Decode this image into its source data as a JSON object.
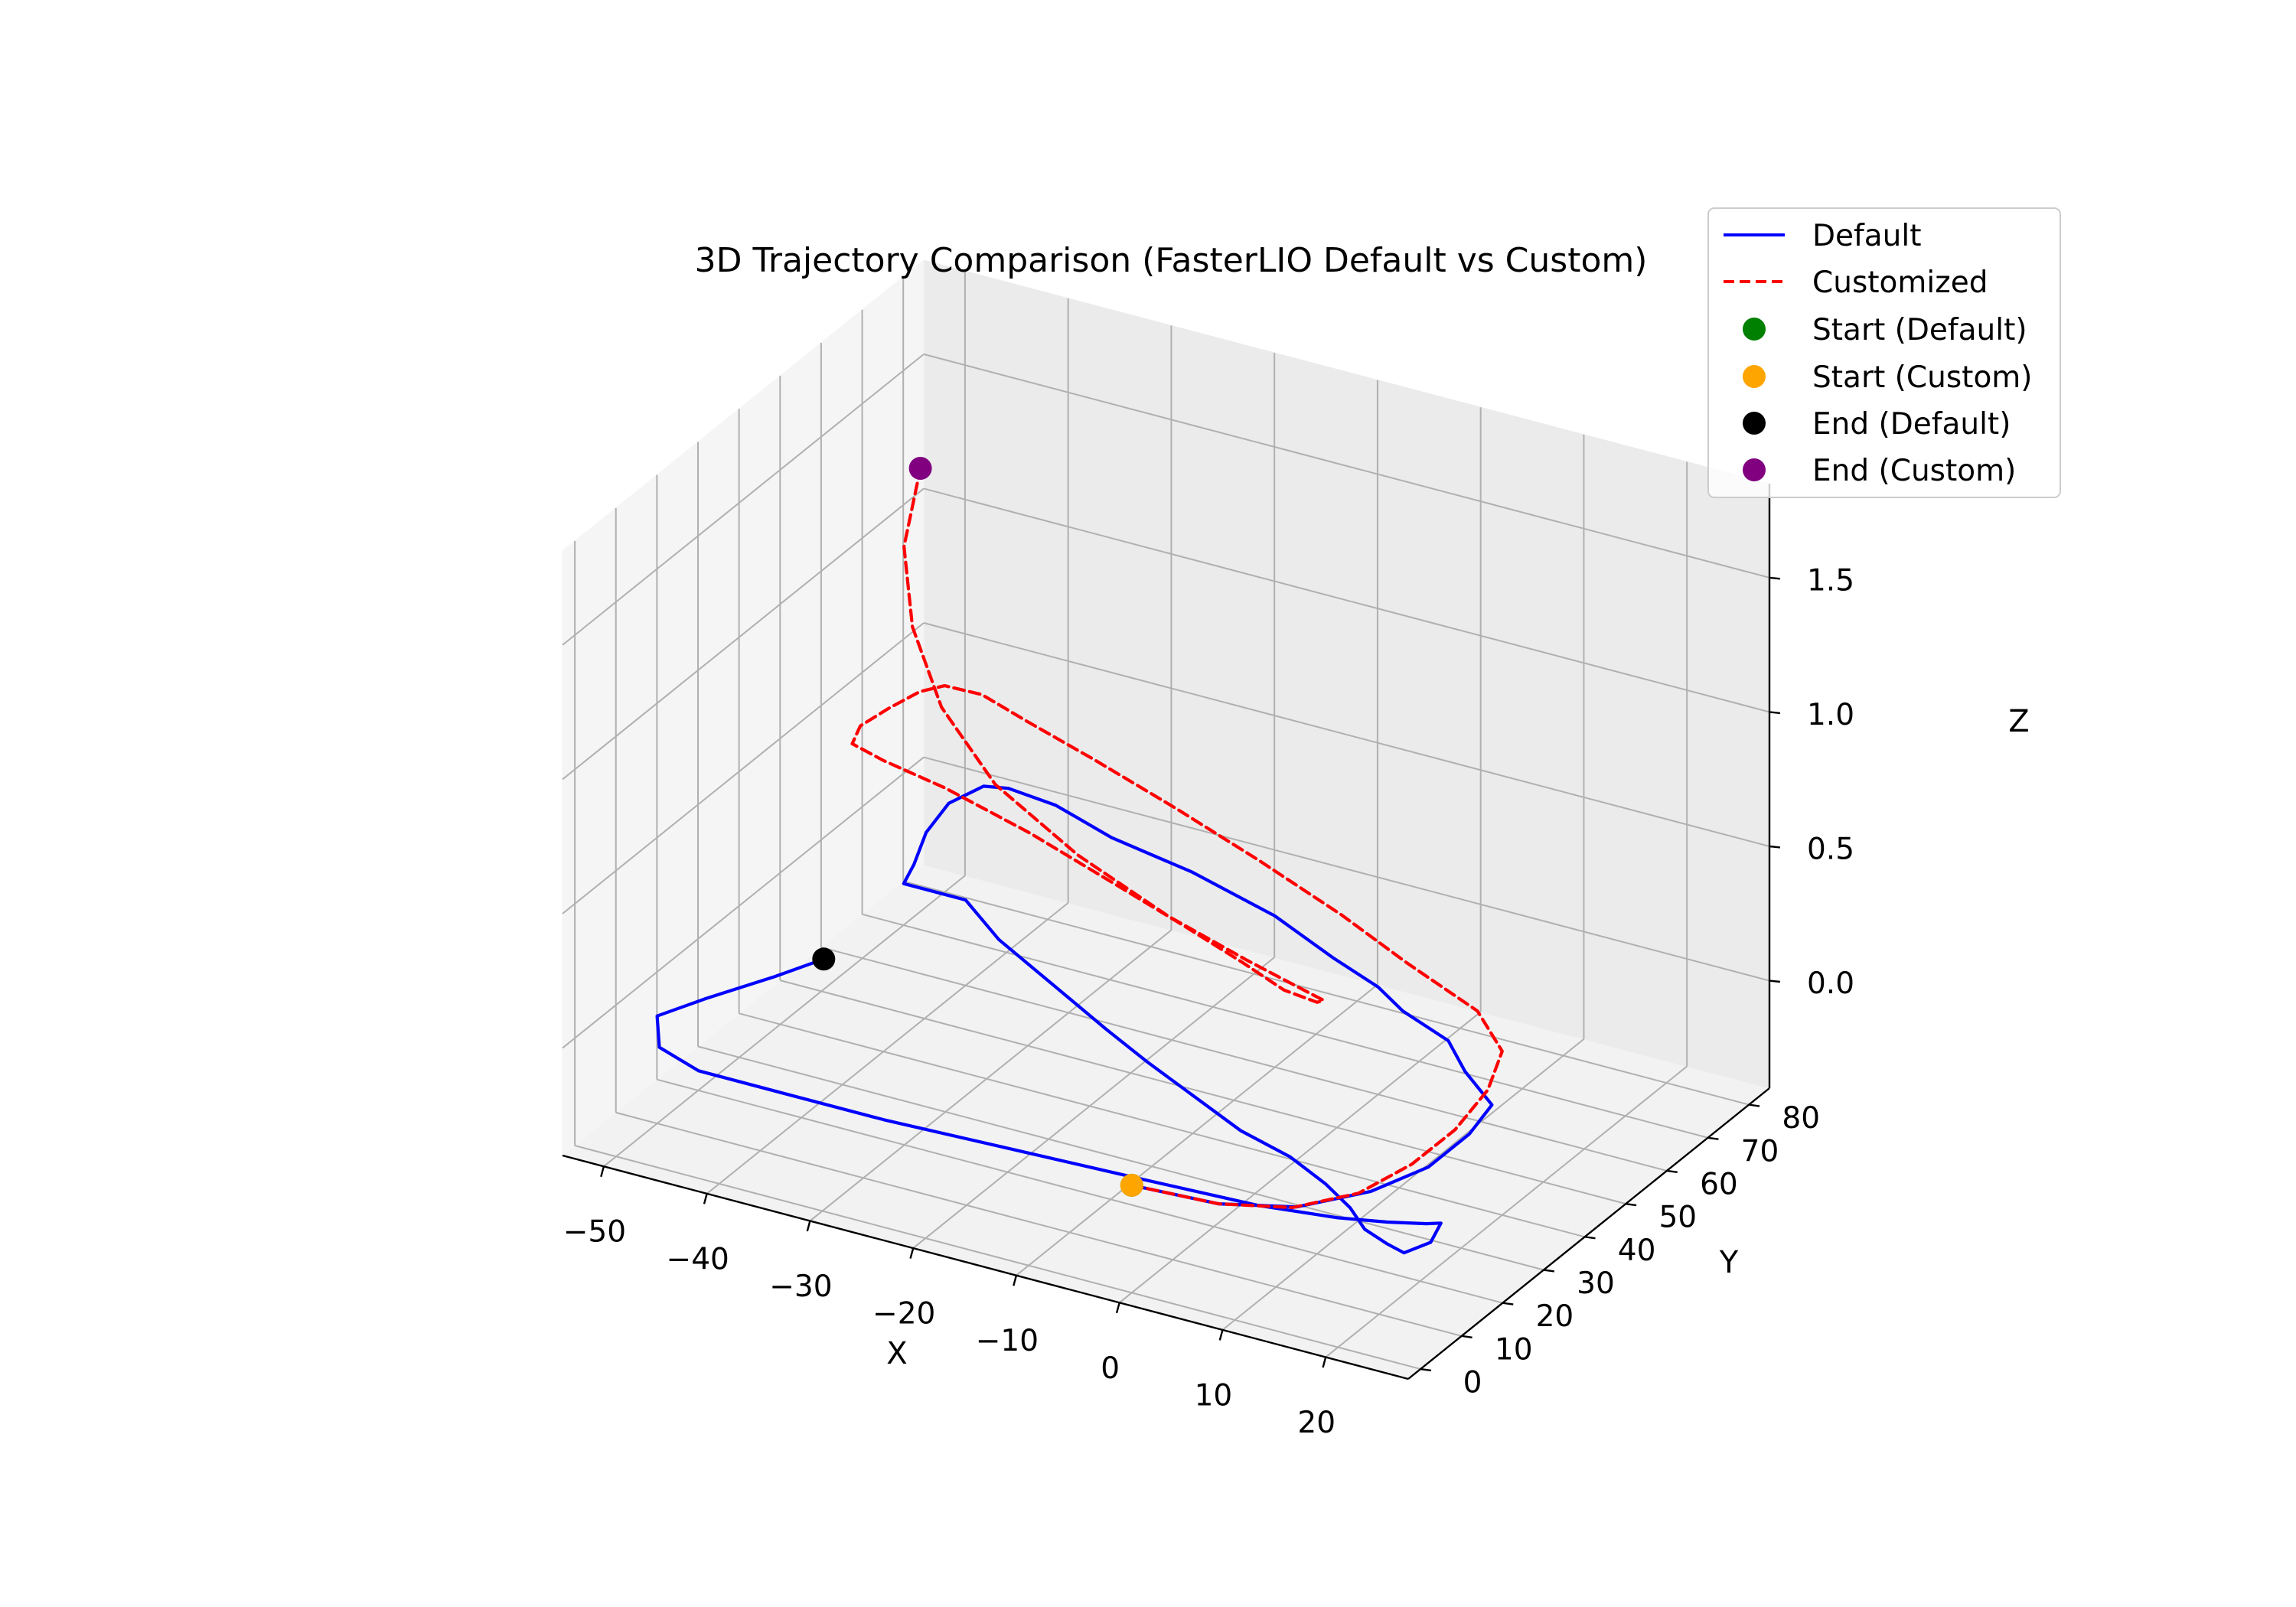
{
  "chart_data": {
    "type": "line",
    "projection": "3d",
    "title": "3D Trajectory Comparison (FasterLIO Default vs Custom)",
    "xlabel": "X",
    "ylabel": "Y",
    "zlabel": "Z",
    "xlim": [
      -54,
      28
    ],
    "ylim": [
      -3,
      85
    ],
    "zlim": [
      -0.4,
      1.85
    ],
    "xticks": [
      -50,
      -40,
      -30,
      -20,
      -10,
      0,
      10,
      20
    ],
    "yticks": [
      0,
      10,
      20,
      30,
      40,
      50,
      60,
      70,
      80
    ],
    "zticks": [
      0.0,
      0.5,
      1.0,
      1.5
    ],
    "xtick_labels": [
      "−50",
      "−40",
      "−30",
      "−20",
      "−10",
      "0",
      "10",
      "20"
    ],
    "ytick_labels": [
      "0",
      "10",
      "20",
      "30",
      "40",
      "50",
      "60",
      "70",
      "80"
    ],
    "ztick_labels": [
      "0.0",
      "0.5",
      "1.0",
      "1.5"
    ],
    "grid": true,
    "legend_position": "top-right",
    "legend": [
      "Default",
      "Customized",
      "Start (Default)",
      "Start (Custom)",
      "End (Default)",
      "End (Custom)"
    ],
    "series": [
      {
        "name": "Default",
        "color": "#0000ff",
        "style": "solid",
        "x": [
          0,
          8,
          14,
          18,
          20,
          20,
          19,
          14,
          10,
          4,
          0,
          -6,
          -14,
          -24,
          -33,
          -40,
          -45,
          -47,
          -48,
          -47,
          -45,
          -44,
          -38,
          -38,
          -32,
          -24,
          -16,
          -10,
          3,
          9,
          14,
          18,
          21,
          24,
          26,
          27,
          26,
          25,
          22,
          18,
          11,
          0,
          -12,
          -24,
          -35,
          -42,
          -47,
          -50,
          -48,
          -45,
          -43
        ],
        "y": [
          0,
          1,
          5,
          13,
          22,
          32,
          40,
          46,
          52,
          56,
          60,
          64,
          70,
          75,
          78,
          82,
          83,
          82,
          76,
          68,
          60,
          55,
          55,
          55,
          48,
          41,
          34,
          29,
          19,
          16,
          12,
          8,
          4,
          2,
          1,
          5,
          10,
          9,
          7,
          5,
          3,
          2,
          1,
          0,
          0,
          0,
          3,
          10,
          17,
          26,
          33
        ],
        "z": [
          0,
          0,
          0,
          0,
          0,
          0,
          0,
          0,
          0,
          0,
          0,
          0,
          0,
          0,
          0,
          0,
          0,
          0,
          0,
          0,
          0,
          0,
          0,
          0,
          0,
          0,
          0,
          0,
          0,
          0,
          0,
          0,
          0,
          0,
          0,
          0,
          0,
          0,
          0,
          0,
          0,
          0,
          0,
          0,
          0,
          0,
          0,
          0,
          0,
          0,
          0
        ]
      },
      {
        "name": "Customized",
        "color": "#ff0000",
        "style": "dashed",
        "x": [
          0,
          8,
          14,
          18,
          20,
          21,
          21,
          20,
          16,
          8,
          0,
          -10,
          -20,
          -30,
          -38,
          -44,
          -48,
          -50,
          -51,
          -51,
          -49,
          -44,
          -36,
          -25,
          -14,
          -4,
          4,
          10,
          14,
          15,
          13,
          8,
          0,
          -10,
          -20,
          -28,
          -34,
          -38,
          -40
        ],
        "y": [
          0,
          1,
          4,
          10,
          18,
          26,
          34,
          40,
          44,
          47,
          51,
          56,
          61,
          66,
          70,
          74,
          75,
          74,
          69,
          62,
          55,
          50,
          45,
          38,
          30,
          23,
          17,
          12,
          10,
          9,
          8,
          8,
          9,
          12,
          17,
          24,
          32,
          40,
          49
        ],
        "z": [
          0,
          0,
          0.01,
          0.03,
          0.06,
          0.1,
          0.15,
          0.21,
          0.27,
          0.33,
          0.38,
          0.42,
          0.45,
          0.47,
          0.48,
          0.47,
          0.45,
          0.42,
          0.41,
          0.43,
          0.47,
          0.52,
          0.56,
          0.59,
          0.62,
          0.64,
          0.66,
          0.68,
          0.7,
          0.73,
          0.77,
          0.82,
          0.89,
          0.98,
          1.08,
          1.2,
          1.34,
          1.5,
          1.66
        ]
      }
    ],
    "markers": [
      {
        "name": "Start (Default)",
        "color": "#008000",
        "x": 0,
        "y": 0,
        "z": 0
      },
      {
        "name": "Start (Custom)",
        "color": "#ffa500",
        "x": 0,
        "y": 0,
        "z": 0
      },
      {
        "name": "End (Default)",
        "color": "#000000",
        "x": -43,
        "y": 33,
        "z": 0
      },
      {
        "name": "End (Custom)",
        "color": "#800080",
        "x": -40,
        "y": 49,
        "z": 1.66
      }
    ]
  }
}
